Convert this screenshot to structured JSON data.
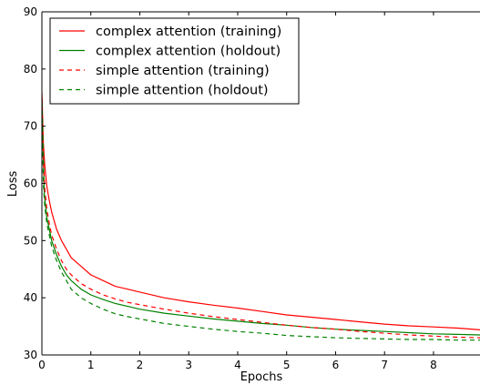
{
  "chart_data": {
    "type": "line",
    "title": "",
    "xlabel": "Epochs",
    "ylabel": "Loss",
    "xlim": [
      0,
      8.95
    ],
    "ylim": [
      30,
      90
    ],
    "xticks": [
      0,
      1,
      2,
      3,
      4,
      5,
      6,
      7,
      8
    ],
    "yticks": [
      30,
      40,
      50,
      60,
      70,
      80,
      90
    ],
    "grid": false,
    "legend_position": "top-left",
    "series": [
      {
        "name": "complex attention (training)",
        "color": "#ff0000",
        "linestyle": "solid",
        "x": [
          0,
          0.03,
          0.06,
          0.1,
          0.15,
          0.2,
          0.3,
          0.4,
          0.5,
          0.6,
          0.8,
          1.0,
          1.25,
          1.5,
          1.75,
          2.0,
          2.5,
          3.0,
          3.5,
          4.0,
          4.5,
          5.0,
          5.5,
          6.0,
          6.5,
          7.0,
          7.5,
          8.0,
          8.5,
          8.95
        ],
        "y": [
          76,
          67,
          63,
          59.5,
          57,
          55,
          52,
          50,
          48.5,
          47,
          45.5,
          44,
          43,
          42,
          41.5,
          41,
          40,
          39.3,
          38.7,
          38.2,
          37.6,
          37,
          36.6,
          36.2,
          35.8,
          35.4,
          35.1,
          34.9,
          34.7,
          34.4
        ]
      },
      {
        "name": "complex attention (holdout)",
        "color": "#008000",
        "linestyle": "solid",
        "x": [
          0,
          0.05,
          0.1,
          0.15,
          0.2,
          0.3,
          0.4,
          0.5,
          0.6,
          0.8,
          1.0,
          1.25,
          1.5,
          1.75,
          2.0,
          2.5,
          3.0,
          3.5,
          4.0,
          4.5,
          5.0,
          5.5,
          6.0,
          6.5,
          7.0,
          7.5,
          8.0,
          8.5,
          8.95
        ],
        "y": [
          75,
          58,
          54,
          52,
          50,
          47.5,
          45.5,
          44,
          43,
          41.5,
          40.5,
          39.7,
          39,
          38.5,
          38,
          37.3,
          36.8,
          36.3,
          35.9,
          35.5,
          35.2,
          34.8,
          34.5,
          34.3,
          34.1,
          33.9,
          33.7,
          33.6,
          33.5
        ]
      },
      {
        "name": "simple attention (training)",
        "color": "#ff0000",
        "linestyle": "dashed",
        "x": [
          0,
          0.03,
          0.06,
          0.1,
          0.15,
          0.2,
          0.3,
          0.4,
          0.5,
          0.6,
          0.8,
          1.0,
          1.25,
          1.5,
          1.75,
          2.0,
          2.5,
          3.0,
          3.5,
          4.0,
          4.5,
          5.0,
          5.5,
          6.0,
          6.5,
          7.0,
          7.5,
          8.0,
          8.5,
          8.95
        ],
        "y": [
          75,
          64,
          59,
          55.5,
          53,
          51,
          48.5,
          46.5,
          45,
          44,
          42.5,
          41.5,
          40.5,
          39.8,
          39.2,
          38.8,
          38,
          37.3,
          36.7,
          36.2,
          35.7,
          35.2,
          34.8,
          34.5,
          34.1,
          33.8,
          33.5,
          33.3,
          33.1,
          33.0
        ]
      },
      {
        "name": "simple attention (holdout)",
        "color": "#008000",
        "linestyle": "dashed",
        "x": [
          0,
          0.03,
          0.06,
          0.1,
          0.15,
          0.2,
          0.3,
          0.4,
          0.5,
          0.6,
          0.8,
          1.0,
          1.25,
          1.5,
          1.75,
          2.0,
          2.5,
          3.0,
          3.5,
          4.0,
          4.5,
          5.0,
          5.5,
          6.0,
          6.5,
          7.0,
          7.5,
          8.0,
          8.5,
          8.95
        ],
        "y": [
          74,
          60,
          56,
          53,
          51,
          49,
          46.5,
          44.5,
          43,
          41.5,
          40,
          39,
          38,
          37.2,
          36.7,
          36.3,
          35.5,
          35,
          34.5,
          34.1,
          33.8,
          33.4,
          33.2,
          33.0,
          32.9,
          32.8,
          32.7,
          32.7,
          32.6,
          32.6
        ]
      }
    ]
  }
}
